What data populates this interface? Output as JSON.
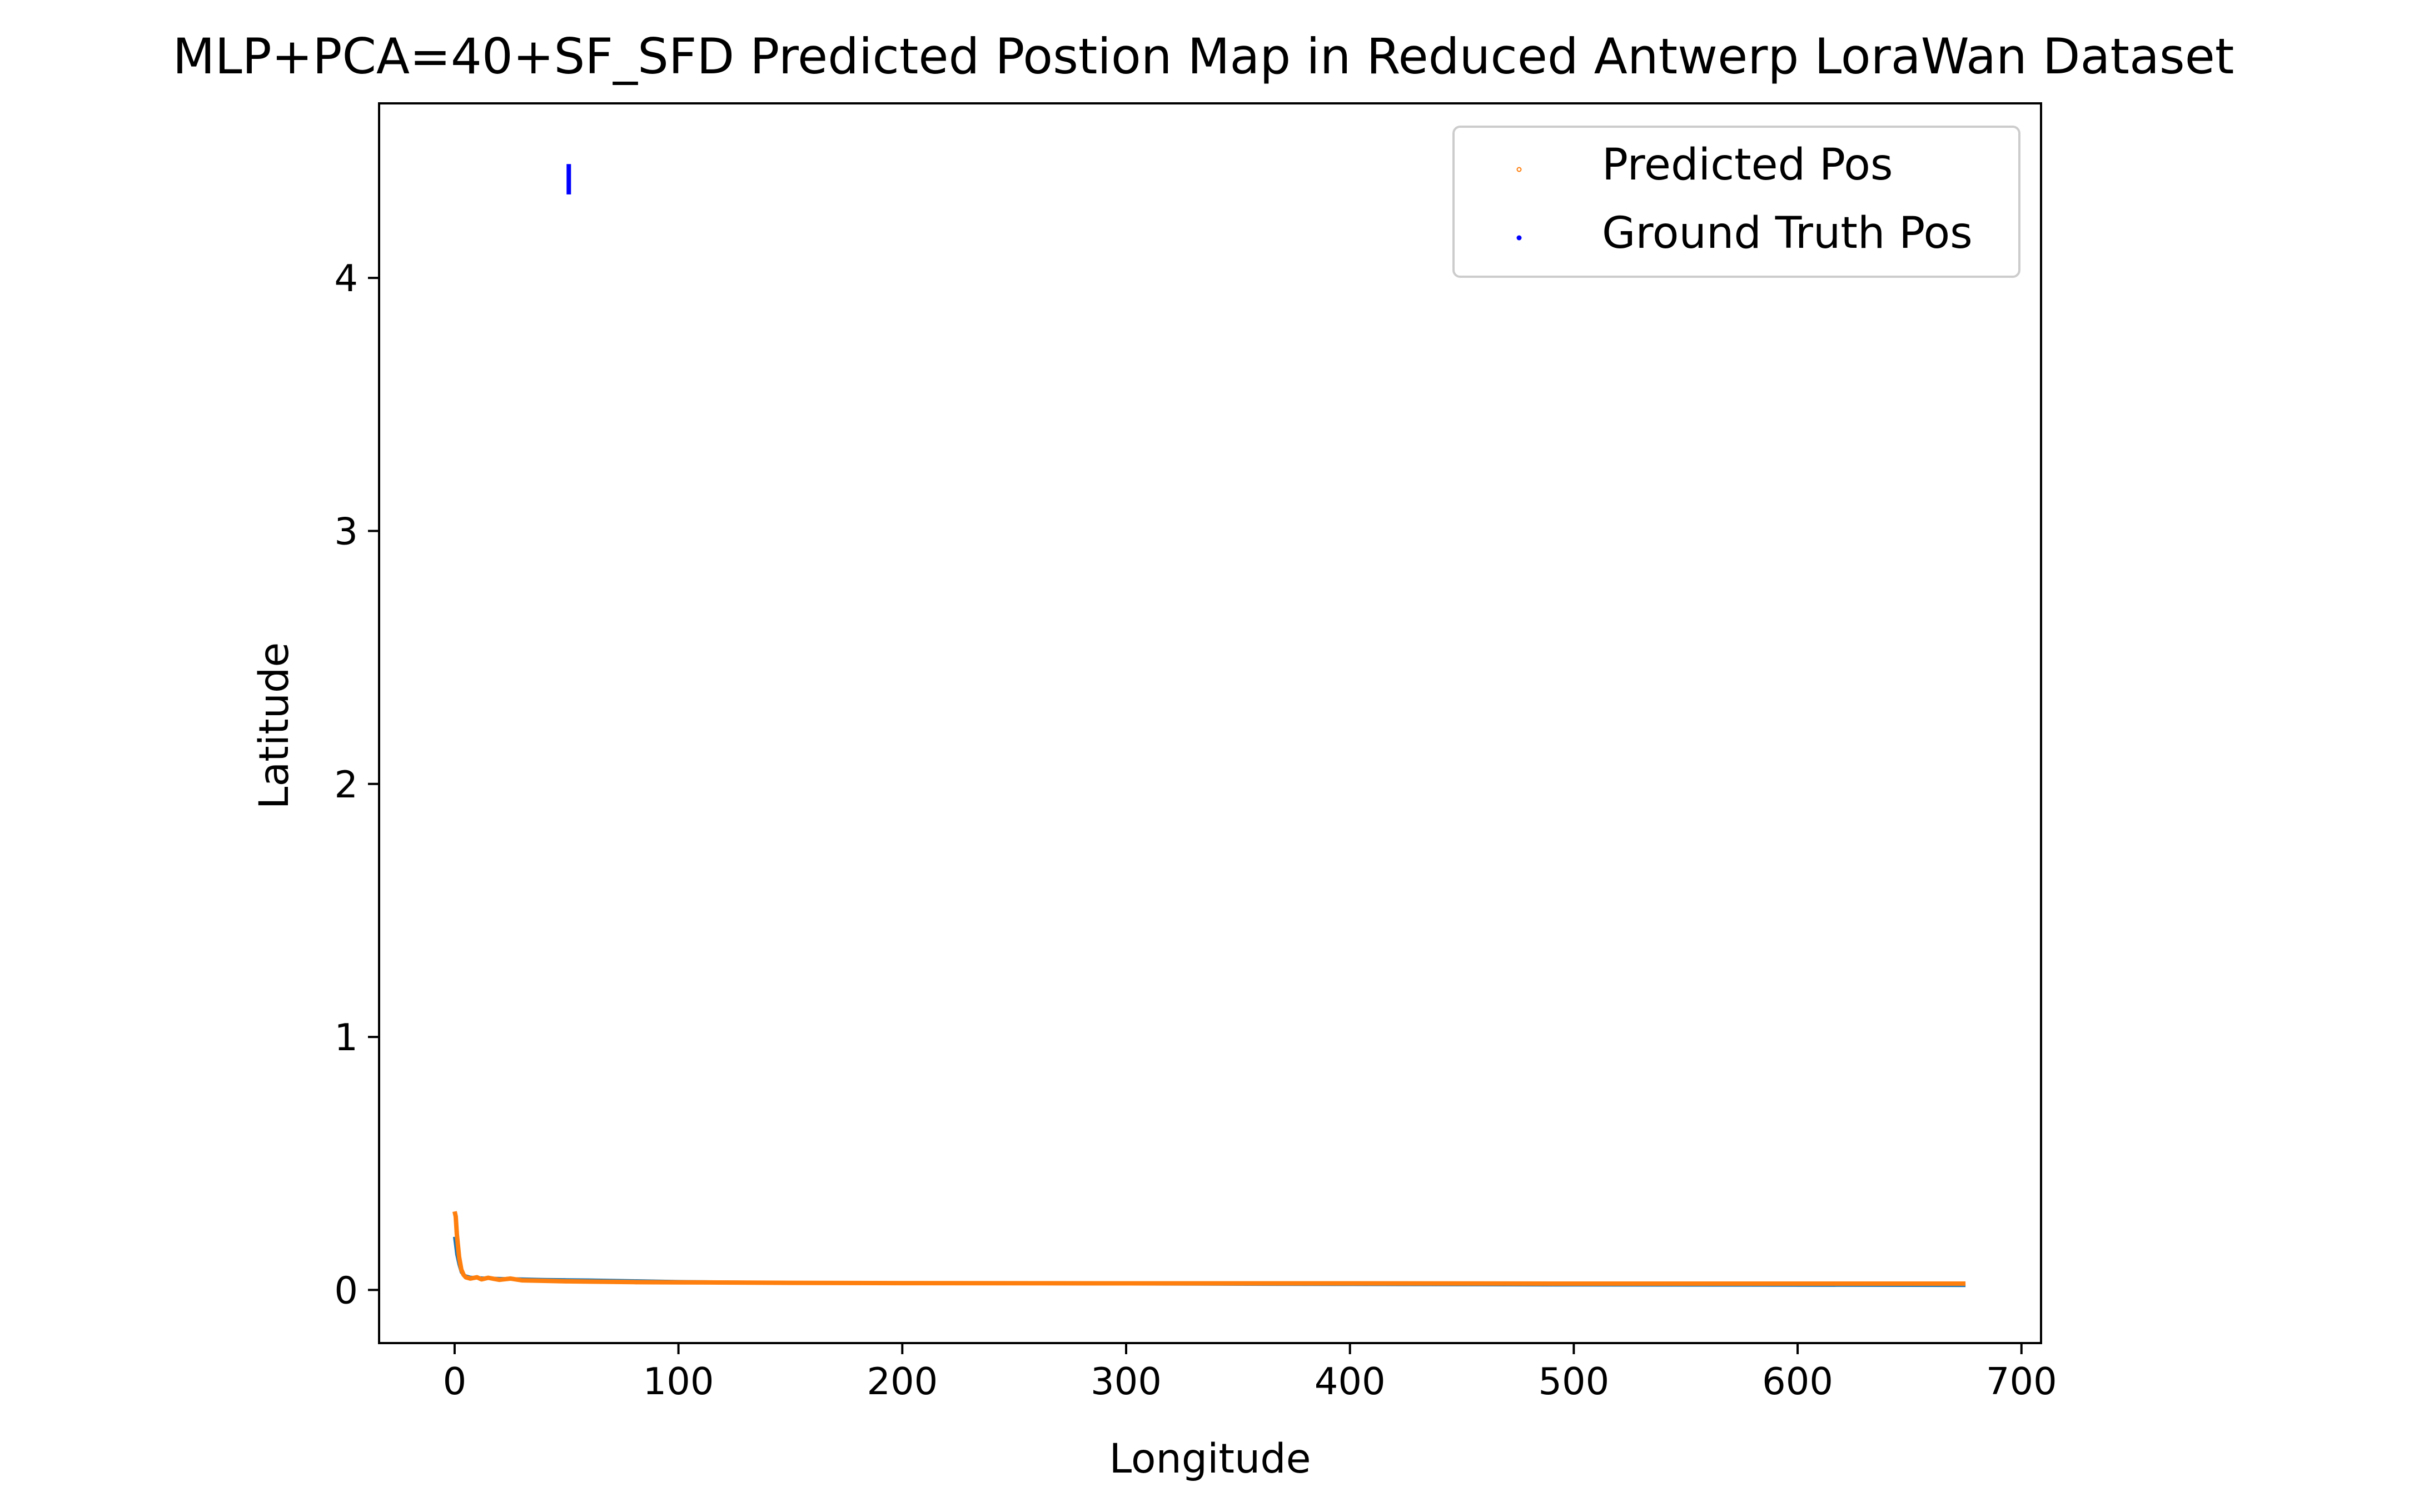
{
  "chart_data": {
    "type": "line",
    "title": "MLP+PCA=40+SF_SFD Predicted Postion Map in Reduced Antwerp LoraWan Dataset",
    "xlabel": "Longitude",
    "ylabel": "Latitude",
    "xlim": [
      -33.75,
      708.75
    ],
    "ylim": [
      -0.21,
      4.69
    ],
    "xticks": [
      0,
      100,
      200,
      300,
      400,
      500,
      600,
      700
    ],
    "yticks": [
      0,
      1,
      2,
      3,
      4
    ],
    "xtick_labels": [
      "0",
      "100",
      "200",
      "300",
      "400",
      "500",
      "600",
      "700"
    ],
    "ytick_labels": [
      "0",
      "1",
      "2",
      "3",
      "4"
    ],
    "grid": false,
    "legend_position": "top-right",
    "legend": [
      {
        "label": "Predicted Pos",
        "color": "#ff7f0e",
        "marker": "point"
      },
      {
        "label": "Ground Truth Pos",
        "color": "#0000ff",
        "marker": "point"
      }
    ],
    "series": [
      {
        "color": "#1f77b4",
        "x": [
          0,
          1,
          2,
          3,
          4,
          5,
          7,
          10,
          15,
          20,
          30,
          40,
          50,
          60,
          80,
          100,
          150,
          200,
          300,
          400,
          500,
          600,
          675
        ],
        "y": [
          0.21,
          0.14,
          0.1,
          0.07,
          0.06,
          0.055,
          0.05,
          0.048,
          0.046,
          0.045,
          0.043,
          0.041,
          0.04,
          0.039,
          0.036,
          0.033,
          0.029,
          0.027,
          0.024,
          0.022,
          0.02,
          0.019,
          0.018
        ]
      },
      {
        "color": "#ff7f0e",
        "x": [
          0,
          0.5,
          1,
          2,
          3,
          4,
          5,
          7,
          10,
          12,
          15,
          20,
          25,
          30,
          40,
          50,
          60,
          80,
          100,
          150,
          200,
          300,
          400,
          500,
          600,
          675
        ],
        "y": [
          0.31,
          0.29,
          0.22,
          0.13,
          0.08,
          0.06,
          0.05,
          0.045,
          0.05,
          0.042,
          0.048,
          0.04,
          0.045,
          0.038,
          0.036,
          0.034,
          0.033,
          0.031,
          0.03,
          0.028,
          0.027,
          0.026,
          0.026,
          0.025,
          0.025,
          0.025
        ]
      },
      {
        "name": "Ground Truth Pos",
        "color": "#0000ff",
        "x": [
          51,
          51,
          51,
          51,
          51,
          51,
          51,
          51,
          51
        ],
        "y": [
          4.33,
          4.345,
          4.36,
          4.375,
          4.39,
          4.405,
          4.42,
          4.435,
          4.45
        ]
      }
    ]
  }
}
